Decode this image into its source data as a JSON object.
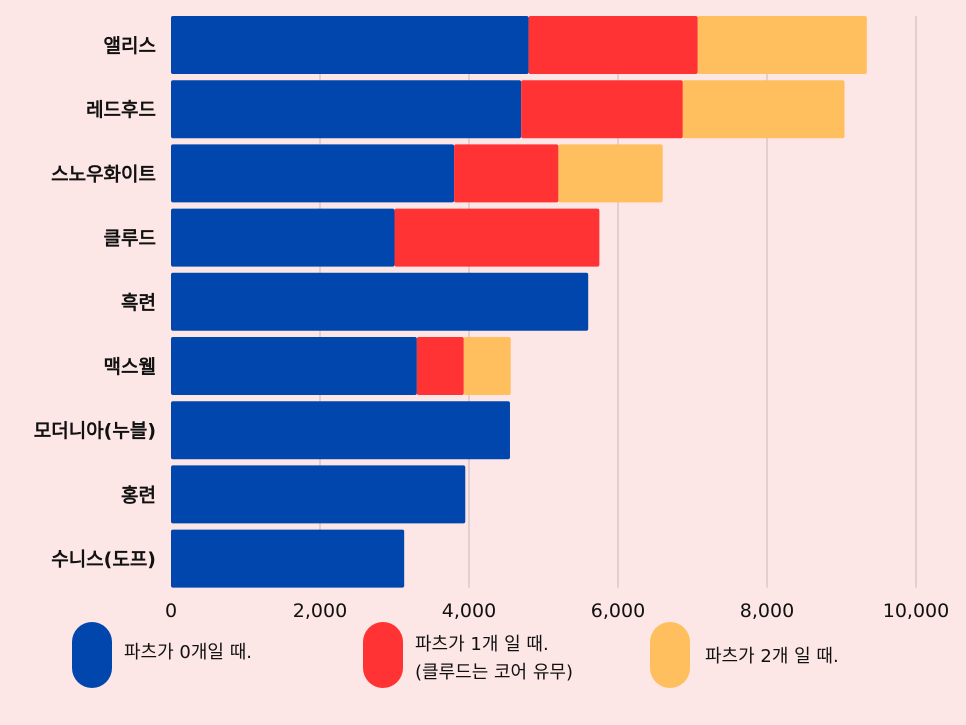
{
  "chart_data": {
    "type": "bar",
    "orientation": "horizontal",
    "stacked": true,
    "categories": [
      "앨리스",
      "레드후드",
      "스노우화이트",
      "클루드",
      "흑련",
      "맥스웰",
      "모더니아(누블)",
      "홍련",
      "수니스(도프)"
    ],
    "series": [
      {
        "name": "파츠가 0개일 때.",
        "color": "#0046ad",
        "values": [
          4800,
          4700,
          3800,
          3000,
          5600,
          3300,
          4550,
          3950,
          3130
        ]
      },
      {
        "name": "파츠가 1개 일 때. (클루드는 코어 유무)",
        "color": "#ff3333",
        "values": [
          2270,
          2170,
          1400,
          2750,
          0,
          630,
          0,
          0,
          0
        ]
      },
      {
        "name": "파츠가 2개 일 때.",
        "color": "#ffbf5e",
        "values": [
          2270,
          2170,
          1400,
          0,
          0,
          630,
          0,
          0,
          0
        ]
      }
    ],
    "xlim": [
      0,
      10000
    ],
    "xticks": [
      "0",
      "2,000",
      "4,000",
      "6,000",
      "8,000",
      "10,000"
    ],
    "grid": true,
    "legend_position": "bottom"
  },
  "legend": [
    {
      "line1": "파츠가 0개일 때.",
      "line2": ""
    },
    {
      "line1": "파츠가 1개 일 때.",
      "line2": "(클루드는 코어 유무)"
    },
    {
      "line1": "파츠가 2개 일 때.",
      "line2": ""
    }
  ],
  "colors": {
    "background": "#fde6e6",
    "grid": "#c9b8b8"
  }
}
